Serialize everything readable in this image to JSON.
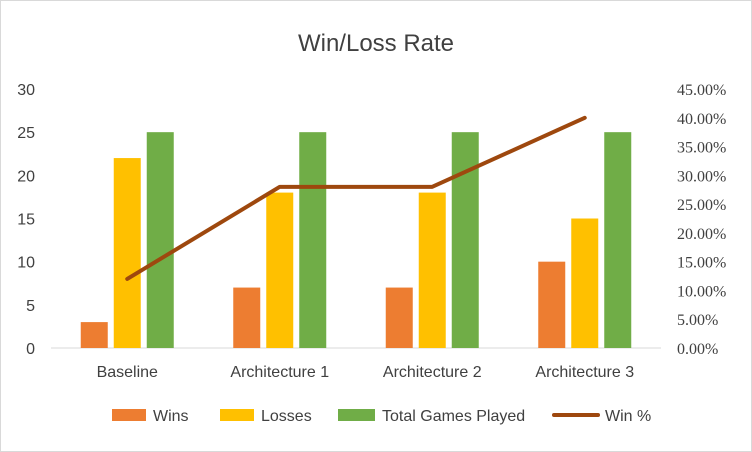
{
  "chart_data": {
    "type": "bar",
    "title": "Win/Loss Rate",
    "categories": [
      "Baseline",
      "Architecture 1",
      "Architecture 2",
      "Architecture 3"
    ],
    "series": [
      {
        "name": "Wins",
        "type": "bar",
        "axis": "left",
        "color": "#ED7D31",
        "values": [
          3,
          7,
          7,
          10
        ]
      },
      {
        "name": "Losses",
        "type": "bar",
        "axis": "left",
        "color": "#FFC000",
        "values": [
          22,
          18,
          18,
          15
        ]
      },
      {
        "name": "Total Games Played",
        "type": "bar",
        "axis": "left",
        "color": "#70AD47",
        "values": [
          25,
          25,
          25,
          25
        ]
      },
      {
        "name": "Win %",
        "type": "line",
        "axis": "right",
        "color": "#9E480E",
        "values": [
          0.12,
          0.28,
          0.28,
          0.4
        ]
      }
    ],
    "y_left": {
      "min": 0,
      "max": 30,
      "ticks": [
        "0",
        "5",
        "10",
        "15",
        "20",
        "25",
        "30"
      ]
    },
    "y_right": {
      "min": 0,
      "max": 0.45,
      "ticks": [
        "0.00%",
        "5.00%",
        "10.00%",
        "15.00%",
        "20.00%",
        "25.00%",
        "30.00%",
        "35.00%",
        "40.00%",
        "45.00%"
      ]
    },
    "grid": false,
    "legend_position": "bottom"
  }
}
